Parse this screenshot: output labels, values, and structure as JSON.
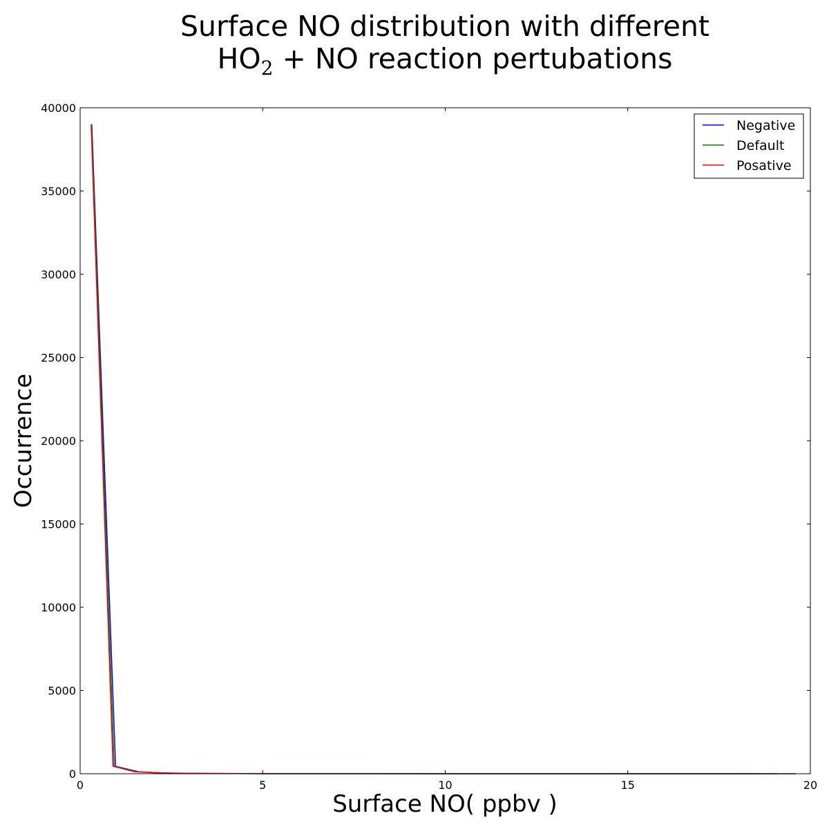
{
  "chart_data": {
    "type": "line",
    "title_line1": "Surface NO distribution with different",
    "title_line2_prefix": "HO",
    "title_line2_sub": "2",
    "title_line2_suffix": " + NO reaction pertubations",
    "xlabel": "Surface NO( ppbv )",
    "ylabel": "Occurrence",
    "xlim": [
      0,
      20
    ],
    "ylim": [
      0,
      40000
    ],
    "xticks": [
      0,
      5,
      10,
      15,
      20
    ],
    "yticks": [
      0,
      5000,
      10000,
      15000,
      20000,
      25000,
      30000,
      35000,
      40000
    ],
    "grid": false,
    "legend_position": "top-right",
    "series": [
      {
        "name": "Negative",
        "color": "#0000ff",
        "x": [
          0.32,
          0.97,
          1.62,
          2.27,
          2.92,
          3.57,
          4.5,
          6,
          8,
          10,
          12,
          14,
          16,
          18,
          19.6
        ],
        "y": [
          39000,
          450,
          110,
          50,
          25,
          15,
          8,
          5,
          3,
          2,
          2,
          1,
          1,
          1,
          0
        ]
      },
      {
        "name": "Default",
        "color": "#008000",
        "x": [
          0.31,
          0.93,
          1.56,
          2.18,
          2.8,
          3.43,
          4.4,
          6,
          8,
          10,
          12,
          14,
          16,
          18,
          19.1
        ],
        "y": [
          39000,
          450,
          110,
          50,
          25,
          15,
          8,
          5,
          3,
          2,
          2,
          1,
          1,
          1,
          0
        ]
      },
      {
        "name": "Posative",
        "color": "#ff0000",
        "x": [
          0.3,
          0.9,
          1.5,
          2.1,
          2.7,
          3.3,
          4.3,
          6,
          8,
          10,
          12,
          14,
          16,
          18,
          18.6
        ],
        "y": [
          39000,
          450,
          110,
          50,
          25,
          15,
          8,
          5,
          3,
          2,
          2,
          1,
          1,
          1,
          0
        ]
      }
    ]
  }
}
